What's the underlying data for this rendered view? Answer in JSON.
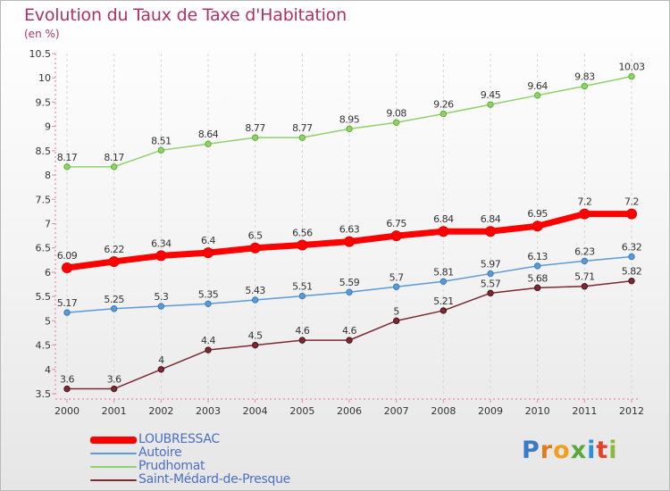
{
  "header": {
    "title": "Evolution du Taux de Taxe d'Habitation",
    "subtitle": "(en %)"
  },
  "chart_data": {
    "type": "line",
    "title": "Evolution du Taux de Taxe d'Habitation",
    "ylabel": "(en %)",
    "x": [
      2000,
      2001,
      2002,
      2003,
      2004,
      2005,
      2006,
      2007,
      2008,
      2009,
      2010,
      2011,
      2012
    ],
    "x_tick_labels": [
      "2000",
      "2001",
      "2002",
      "2003",
      "2004",
      "2005",
      "2006",
      "2007",
      "2008",
      "2009",
      "2010",
      "2011",
      "2012"
    ],
    "ylim": [
      3.5,
      10.5
    ],
    "y_ticks": [
      3.5,
      4,
      4.5,
      5,
      5.5,
      6,
      6.5,
      7,
      7.5,
      8,
      8.5,
      9,
      9.5,
      10,
      10.5
    ],
    "y_tick_labels": [
      "3.5",
      "4",
      "4.5",
      "5",
      "5.5",
      "6",
      "6.5",
      "7",
      "7.5",
      "8",
      "8.5",
      "9",
      "9.5",
      "10",
      "10.5"
    ],
    "grid": "vertical-dashed",
    "legend_position": "bottom-left",
    "series": [
      {
        "name": "LOUBRESSAC",
        "color": "#ff0000",
        "values": [
          6.09,
          6.22,
          6.34,
          6.4,
          6.5,
          6.56,
          6.63,
          6.75,
          6.84,
          6.84,
          6.95,
          7.2,
          7.2
        ],
        "labels": [
          "6.09",
          "6.22",
          "6.34",
          "6.4",
          "6.5",
          "6.56",
          "6.63",
          "6.75",
          "6.84",
          "6.84",
          "6.95",
          "7.2",
          "7.2"
        ]
      },
      {
        "name": "Autoire",
        "color": "#5b9bd5",
        "values": [
          5.17,
          5.25,
          5.3,
          5.35,
          5.43,
          5.51,
          5.59,
          5.7,
          5.81,
          5.97,
          6.13,
          6.23,
          6.32
        ],
        "labels": [
          "5.17",
          "5.25",
          "5.3",
          "5.35",
          "5.43",
          "5.51",
          "5.59",
          "5.7",
          "5.81",
          "5.97",
          "6.13",
          "6.23",
          "6.32"
        ]
      },
      {
        "name": "Prudhomat",
        "color": "#8fd16a",
        "values": [
          8.17,
          8.17,
          8.51,
          8.64,
          8.77,
          8.77,
          8.95,
          9.08,
          9.26,
          9.45,
          9.64,
          9.83,
          10.03
        ],
        "labels": [
          "8.17",
          "8.17",
          "8.51",
          "8.64",
          "8.77",
          "8.77",
          "8.95",
          "9.08",
          "9.26",
          "9.45",
          "9.64",
          "9.83",
          "10.03"
        ]
      },
      {
        "name": "Saint-Médard-de-Presque",
        "color": "#7b2a33",
        "values": [
          3.6,
          3.6,
          4,
          4.4,
          4.5,
          4.6,
          4.6,
          5,
          5.21,
          5.57,
          5.68,
          5.71,
          5.82
        ],
        "labels": [
          "3.6",
          "3.6",
          "4",
          "4.4",
          "4.5",
          "4.6",
          "4.6",
          "5",
          "5.21",
          "5.57",
          "5.68",
          "5.71",
          "5.82"
        ]
      }
    ]
  },
  "legend": {
    "items": [
      {
        "label": "LOUBRESSAC",
        "color": "#ff0000"
      },
      {
        "label": "Autoire",
        "color": "#5b9bd5"
      },
      {
        "label": "Prudhomat",
        "color": "#8fd16a"
      },
      {
        "label": "Saint-Médard-de-Presque",
        "color": "#7b2a33"
      }
    ]
  },
  "logo": {
    "letters": [
      "P",
      "r",
      "o",
      "x",
      "i",
      "t",
      "i"
    ],
    "colors": [
      "#3a78c8",
      "#e07a1f",
      "#f0a020",
      "#5aa83a",
      "#2f8fd4",
      "#e0452a",
      "#8ab83a"
    ]
  }
}
